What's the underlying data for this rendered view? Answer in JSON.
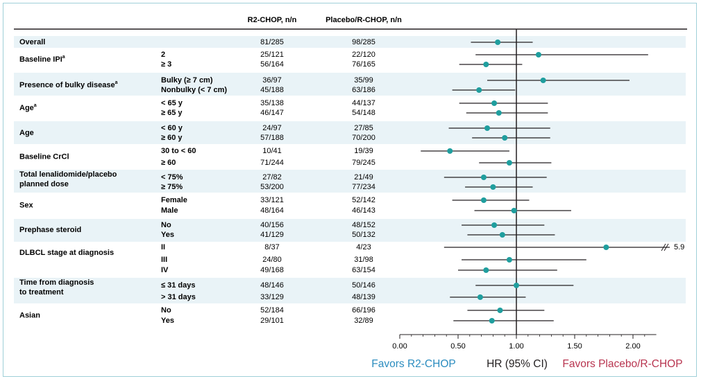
{
  "headers": {
    "r2": "R2-CHOP, n/n",
    "placebo": "Placebo/R-CHOP, n/n"
  },
  "colors": {
    "band": "#e9f3f7",
    "point": "#1f9e9e",
    "favors_left": "#2b8cbf",
    "favors_right": "#b8344f",
    "axis_title": "#231f20"
  },
  "chart_data": {
    "type": "forest",
    "xlabel": "HR (95% CI)",
    "favors_left": "Favors R2-CHOP",
    "favors_right": "Favors Placebo/R-CHOP",
    "xlim": [
      0.0,
      2.2
    ],
    "ticks": [
      "0.00",
      "0.50",
      "1.00",
      "1.50",
      "2.00"
    ],
    "reference_line": 1.0,
    "groups": [
      {
        "label": "Overall",
        "sup": "",
        "rows": [
          {
            "sub": "",
            "r2": "81/285",
            "pl": "98/285",
            "hr": 0.84,
            "lo": 0.61,
            "hi": 1.14
          }
        ]
      },
      {
        "label": "Baseline IPI",
        "sup": "a",
        "rows": [
          {
            "sub": "2",
            "r2": "25/121",
            "pl": "22/120",
            "hr": 1.19,
            "lo": 0.65,
            "hi": 2.13
          },
          {
            "sub": "≥ 3",
            "r2": "56/164",
            "pl": "76/165",
            "hr": 0.74,
            "lo": 0.51,
            "hi": 1.05
          }
        ]
      },
      {
        "label": "Presence of bulky disease",
        "sup": "a",
        "rows": [
          {
            "sub": "Bulky (≥ 7 cm)",
            "r2": "36/97",
            "pl": "35/99",
            "hr": 1.23,
            "lo": 0.75,
            "hi": 1.97
          },
          {
            "sub": "Nonbulky (< 7 cm)",
            "r2": "45/188",
            "pl": "63/186",
            "hr": 0.68,
            "lo": 0.45,
            "hi": 0.99
          }
        ]
      },
      {
        "label": "Age",
        "sup": "a",
        "rows": [
          {
            "sub": "< 65 y",
            "r2": "35/138",
            "pl": "44/137",
            "hr": 0.81,
            "lo": 0.51,
            "hi": 1.27
          },
          {
            "sub": "≥ 65 y",
            "r2": "46/147",
            "pl": "54/148",
            "hr": 0.85,
            "lo": 0.57,
            "hi": 1.27
          }
        ]
      },
      {
        "label": "Age",
        "sup": "",
        "rows": [
          {
            "sub": "< 60 y",
            "r2": "24/97",
            "pl": "27/85",
            "hr": 0.75,
            "lo": 0.42,
            "hi": 1.29
          },
          {
            "sub": "≥ 60 y",
            "r2": "57/188",
            "pl": "70/200",
            "hr": 0.9,
            "lo": 0.62,
            "hi": 1.29
          }
        ]
      },
      {
        "label": "Baseline CrCl",
        "sup": "",
        "rows": [
          {
            "sub": "30 to < 60",
            "r2": "10/41",
            "pl": "19/39",
            "hr": 0.43,
            "lo": 0.18,
            "hi": 0.94
          },
          {
            "sub": "≥ 60",
            "r2": "71/244",
            "pl": "79/245",
            "hr": 0.94,
            "lo": 0.68,
            "hi": 1.3
          }
        ]
      },
      {
        "label": "Total lenalidomide/placebo",
        "label2": "planned dose",
        "sup": "",
        "rows": [
          {
            "sub": "< 75%",
            "r2": "27/82",
            "pl": "21/49",
            "hr": 0.72,
            "lo": 0.38,
            "hi": 1.26
          },
          {
            "sub": "≥ 75%",
            "r2": "53/200",
            "pl": "77/234",
            "hr": 0.8,
            "lo": 0.56,
            "hi": 1.14
          }
        ]
      },
      {
        "label": "Sex",
        "sup": "",
        "rows": [
          {
            "sub": "Female",
            "r2": "33/121",
            "pl": "52/142",
            "hr": 0.72,
            "lo": 0.45,
            "hi": 1.11
          },
          {
            "sub": "Male",
            "r2": "48/164",
            "pl": "46/143",
            "hr": 0.98,
            "lo": 0.64,
            "hi": 1.47
          }
        ]
      },
      {
        "label": "Prephase steroid",
        "sup": "",
        "rows": [
          {
            "sub": "No",
            "r2": "40/156",
            "pl": "48/152",
            "hr": 0.81,
            "lo": 0.53,
            "hi": 1.24
          },
          {
            "sub": "Yes",
            "r2": "41/129",
            "pl": "50/132",
            "hr": 0.88,
            "lo": 0.58,
            "hi": 1.33
          }
        ]
      },
      {
        "label": "DLBCL stage at diagnosis",
        "sup": "",
        "rows": [
          {
            "sub": "II",
            "r2": "8/37",
            "pl": "4/23",
            "hr": 1.77,
            "lo": 0.38,
            "hi": 5.9,
            "hi_label": "5.9"
          },
          {
            "sub": "III",
            "r2": "24/80",
            "pl": "31/98",
            "hr": 0.94,
            "lo": 0.53,
            "hi": 1.6
          },
          {
            "sub": "IV",
            "r2": "49/168",
            "pl": "63/154",
            "hr": 0.74,
            "lo": 0.5,
            "hi": 1.35
          }
        ]
      },
      {
        "label": "Time from diagnosis",
        "label2": "to treatment",
        "sup": "",
        "rows": [
          {
            "sub": "≤ 31 days",
            "r2": "48/146",
            "pl": "50/146",
            "hr": 1.0,
            "lo": 0.65,
            "hi": 1.49
          },
          {
            "sub": "> 31 days",
            "r2": "33/129",
            "pl": "48/139",
            "hr": 0.69,
            "lo": 0.43,
            "hi": 1.08
          }
        ]
      },
      {
        "label": "Asian",
        "sup": "",
        "rows": [
          {
            "sub": "No",
            "r2": "52/184",
            "pl": "66/196",
            "hr": 0.86,
            "lo": 0.58,
            "hi": 1.24
          },
          {
            "sub": "Yes",
            "r2": "29/101",
            "pl": "32/89",
            "hr": 0.79,
            "lo": 0.46,
            "hi": 1.32
          }
        ]
      }
    ]
  }
}
